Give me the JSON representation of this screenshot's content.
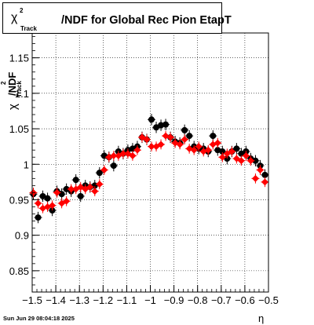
{
  "timestamp": "Sun Jun 29 08:04:18 2025",
  "title": {
    "chi": "χ",
    "sup": "2",
    "sub": "Track",
    "rest": "/NDF for Global Rec Pion EtapT"
  },
  "ylabel": {
    "chi": "χ",
    "sup": "2",
    "sub": "Track",
    "rest": "/NDF"
  },
  "xlabel": "η",
  "chart_data": {
    "type": "scatter",
    "title": "χ²_Track/NDF for Global Rec Pion EtapT",
    "xlabel": "η",
    "ylabel": "χ²_Track/NDF",
    "xlim": [
      -1.5,
      -0.5
    ],
    "ylim": [
      0.82,
      1.185
    ],
    "grid": true,
    "xticks": [
      -1.5,
      -1.4,
      -1.3,
      -1.2,
      -1.1,
      -1.0,
      -0.9,
      -0.8,
      -0.7,
      -0.6,
      -0.5
    ],
    "xtick_labels": [
      "−1.5",
      "−1.4",
      "−1.3",
      "−1.2",
      "−1.1",
      "−1",
      "−0.9",
      "−0.8",
      "−0.7",
      "−0.6",
      "−0.5"
    ],
    "yticks": [
      0.85,
      0.9,
      0.95,
      1.0,
      1.05,
      1.1,
      1.15
    ],
    "ytick_labels": [
      "0.85",
      "0.9",
      "0.95",
      "1",
      "1.05",
      "1.1",
      "1.15"
    ],
    "series": [
      {
        "color": "#000000",
        "marker": "circle",
        "x": [
          -1.495,
          -1.475,
          -1.455,
          -1.435,
          -1.415,
          -1.395,
          -1.375,
          -1.355,
          -1.335,
          -1.315,
          -1.295,
          -1.275,
          -1.255,
          -1.235,
          -1.215,
          -1.195,
          -1.175,
          -1.155,
          -1.135,
          -1.115,
          -1.095,
          -1.075,
          -1.055,
          -1.035,
          -1.015,
          -0.995,
          -0.975,
          -0.955,
          -0.935,
          -0.915,
          -0.895,
          -0.875,
          -0.855,
          -0.835,
          -0.815,
          -0.795,
          -0.775,
          -0.755,
          -0.735,
          -0.715,
          -0.695,
          -0.675,
          -0.655,
          -0.635,
          -0.615,
          -0.595,
          -0.575,
          -0.555,
          -0.535,
          -0.515
        ],
        "y": [
          0.958,
          0.925,
          0.955,
          0.952,
          0.935,
          0.962,
          0.958,
          0.965,
          0.962,
          0.978,
          0.955,
          0.97,
          0.968,
          0.97,
          0.988,
          1.012,
          1.01,
          0.998,
          1.018,
          1.015,
          1.02,
          1.022,
          1.025,
          1.038,
          1.035,
          1.063,
          1.052,
          1.055,
          1.056,
          1.038,
          1.032,
          1.03,
          1.048,
          1.04,
          1.025,
          1.022,
          1.022,
          1.018,
          1.04,
          1.02,
          1.018,
          1.008,
          1.018,
          1.022,
          1.015,
          1.018,
          1.008,
          1.005,
          0.998,
          0.985
        ],
        "yerr": [
          0.008,
          0.008,
          0.008,
          0.008,
          0.008,
          0.008,
          0.008,
          0.008,
          0.008,
          0.008,
          0.008,
          0.008,
          0.008,
          0.008,
          0.008,
          0.008,
          0.008,
          0.008,
          0.008,
          0.008,
          0.008,
          0.008,
          0.008,
          0.008,
          0.008,
          0.008,
          0.008,
          0.008,
          0.008,
          0.008,
          0.008,
          0.008,
          0.008,
          0.008,
          0.008,
          0.008,
          0.008,
          0.008,
          0.008,
          0.008,
          0.008,
          0.008,
          0.008,
          0.008,
          0.008,
          0.008,
          0.008,
          0.008,
          0.008,
          0.008
        ]
      },
      {
        "color": "#ff0000",
        "marker": "diamond",
        "x": [
          -1.495,
          -1.475,
          -1.455,
          -1.435,
          -1.415,
          -1.395,
          -1.375,
          -1.355,
          -1.335,
          -1.315,
          -1.295,
          -1.275,
          -1.255,
          -1.235,
          -1.215,
          -1.195,
          -1.175,
          -1.155,
          -1.135,
          -1.115,
          -1.095,
          -1.075,
          -1.055,
          -1.035,
          -1.015,
          -0.995,
          -0.975,
          -0.955,
          -0.935,
          -0.915,
          -0.895,
          -0.875,
          -0.855,
          -0.835,
          -0.815,
          -0.795,
          -0.775,
          -0.755,
          -0.735,
          -0.715,
          -0.695,
          -0.675,
          -0.655,
          -0.635,
          -0.615,
          -0.595,
          -0.575,
          -0.555,
          -0.535,
          -0.515
        ],
        "y": [
          0.96,
          0.945,
          0.938,
          0.94,
          0.942,
          0.96,
          0.945,
          0.948,
          0.965,
          0.965,
          0.968,
          0.965,
          0.968,
          0.962,
          0.972,
          0.992,
          1.01,
          1.012,
          1.012,
          1.015,
          1.015,
          1.012,
          1.02,
          1.038,
          1.035,
          1.025,
          1.025,
          1.028,
          1.04,
          1.038,
          1.03,
          1.028,
          1.035,
          1.022,
          1.02,
          1.025,
          1.018,
          1.02,
          1.028,
          1.03,
          1.01,
          1.015,
          1.018,
          1.008,
          1.005,
          1.012,
          1.005,
          0.98,
          0.992,
          0.975
        ],
        "yerr": [
          0.007,
          0.007,
          0.007,
          0.007,
          0.007,
          0.007,
          0.007,
          0.007,
          0.007,
          0.007,
          0.007,
          0.007,
          0.007,
          0.007,
          0.007,
          0.007,
          0.007,
          0.007,
          0.007,
          0.007,
          0.007,
          0.007,
          0.007,
          0.007,
          0.007,
          0.007,
          0.007,
          0.007,
          0.007,
          0.007,
          0.007,
          0.007,
          0.007,
          0.007,
          0.007,
          0.007,
          0.007,
          0.007,
          0.007,
          0.007,
          0.007,
          0.007,
          0.007,
          0.007,
          0.007,
          0.007,
          0.007,
          0.007,
          0.007,
          0.007
        ]
      }
    ]
  }
}
